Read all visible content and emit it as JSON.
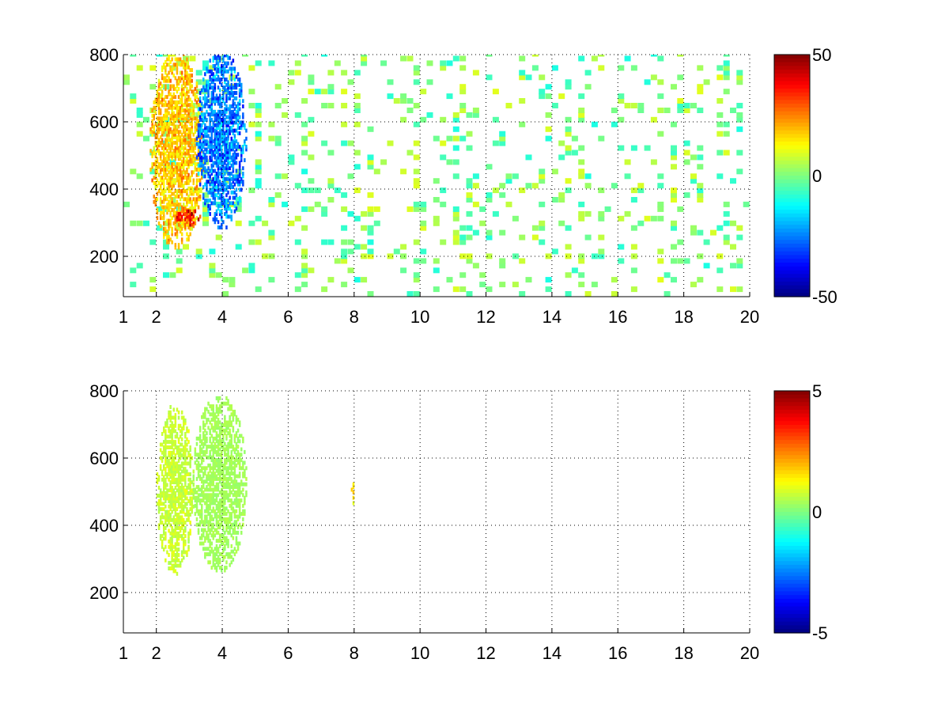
{
  "chart_data": [
    {
      "type": "heatmap",
      "title": "",
      "xlabel": "",
      "ylabel": "",
      "xlim": [
        1,
        20
      ],
      "ylim": [
        80,
        800
      ],
      "x_ticks": [
        1,
        2,
        4,
        6,
        8,
        10,
        12,
        14,
        16,
        18,
        20
      ],
      "y_ticks": [
        200,
        400,
        600,
        800
      ],
      "grid": "dotted",
      "colormap": "jet",
      "clim": [
        -50,
        50
      ],
      "colorbar_ticks": [
        50,
        0,
        -50
      ],
      "colorbar_position": "right",
      "features": [
        {
          "x": [
            1.8,
            3.4
          ],
          "y": [
            220,
            800
          ],
          "value": 25,
          "description": "positive ridge"
        },
        {
          "x": [
            3.2,
            4.7
          ],
          "y": [
            280,
            800
          ],
          "value": -35,
          "description": "negative ridge"
        },
        {
          "x": [
            2.5,
            3.3
          ],
          "y": [
            280,
            340
          ],
          "value": 45,
          "description": "peak"
        }
      ],
      "sparse_noise": {
        "x": [
          1,
          20
        ],
        "y": [
          80,
          800
        ],
        "value_range": [
          -10,
          10
        ]
      }
    },
    {
      "type": "heatmap",
      "title": "",
      "xlabel": "",
      "ylabel": "",
      "xlim": [
        1,
        20
      ],
      "ylim": [
        80,
        800
      ],
      "x_ticks": [
        1,
        2,
        4,
        6,
        8,
        10,
        12,
        14,
        16,
        18,
        20
      ],
      "y_ticks": [
        200,
        400,
        600,
        800
      ],
      "grid": "dotted",
      "colormap": "jet",
      "clim": [
        -5,
        5
      ],
      "colorbar_ticks": [
        5,
        0,
        -5
      ],
      "colorbar_position": "right",
      "features": [
        {
          "x": [
            2.0,
            3.1
          ],
          "y": [
            250,
            750
          ],
          "value": 1,
          "description": "left cluster"
        },
        {
          "x": [
            3.1,
            4.7
          ],
          "y": [
            260,
            780
          ],
          "value": 0.5,
          "description": "right cluster"
        },
        {
          "x": [
            7.9,
            8.0
          ],
          "y": [
            460,
            540
          ],
          "value": 2,
          "description": "small patch"
        }
      ]
    }
  ]
}
